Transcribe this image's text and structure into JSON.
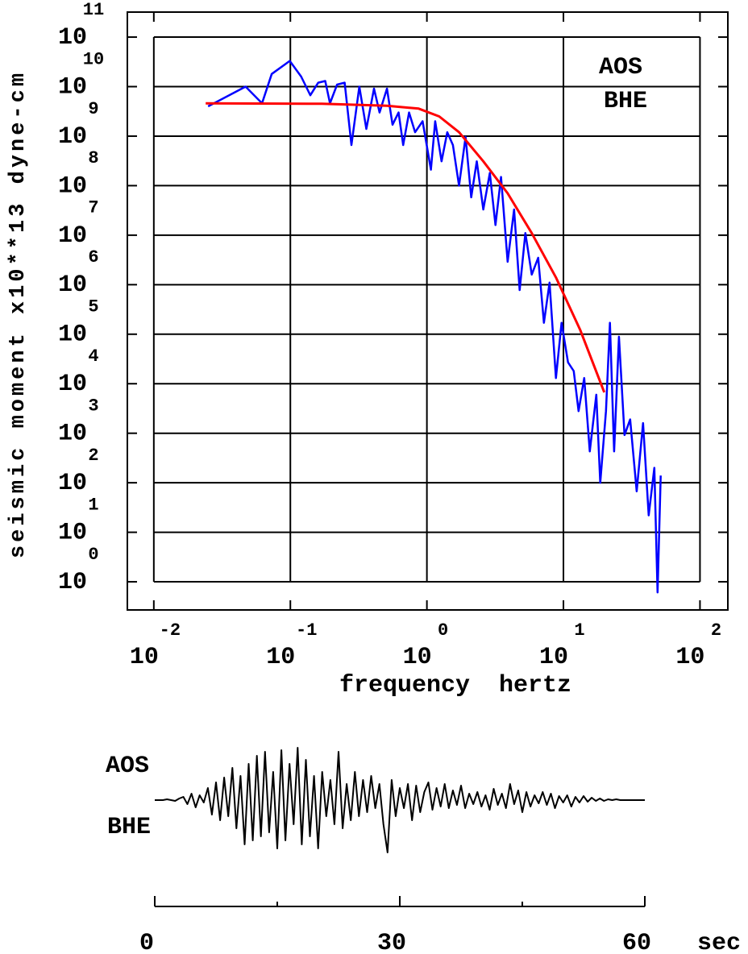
{
  "chart_data": [
    {
      "type": "line",
      "x_label": "frequency  hertz",
      "y_label": "seismic moment x10**13 dyne-cm",
      "station": "AOS",
      "channel": "BHE",
      "log_x": true,
      "log_y": true,
      "grid": true,
      "xlim": [
        0.0064,
        160
      ],
      "ylim": [
        0.27,
        320000000000.0
      ],
      "xticks": [
        {
          "value": 0.01,
          "label": "10",
          "power": "-2"
        },
        {
          "value": 0.1,
          "label": "10",
          "power": "-1"
        },
        {
          "value": 1,
          "label": "10",
          "power": "0"
        },
        {
          "value": 10,
          "label": "10",
          "power": "1"
        },
        {
          "value": 100,
          "label": "10",
          "power": "2"
        }
      ],
      "yticks": [
        {
          "value": 1,
          "label": "10",
          "power": "0"
        },
        {
          "value": 10,
          "label": "10",
          "power": "1"
        },
        {
          "value": 100,
          "label": "10",
          "power": "2"
        },
        {
          "value": 1000,
          "label": "10",
          "power": "3"
        },
        {
          "value": 10000,
          "label": "10",
          "power": "4"
        },
        {
          "value": 100000,
          "label": "10",
          "power": "5"
        },
        {
          "value": 1000000,
          "label": "10",
          "power": "6"
        },
        {
          "value": 10000000,
          "label": "10",
          "power": "7"
        },
        {
          "value": 100000000,
          "label": "10",
          "power": "8"
        },
        {
          "value": 1000000000,
          "label": "10",
          "power": "9"
        },
        {
          "value": 10000000000,
          "label": "10",
          "power": "10"
        },
        {
          "value": 100000000000,
          "label": "10",
          "power": "11"
        }
      ],
      "series": [
        {
          "color": "#0000ff",
          "x": [
            0.025,
            0.047,
            0.062,
            0.073,
            0.099,
            0.12,
            0.14,
            0.16,
            0.18,
            0.195,
            0.22,
            0.25,
            0.28,
            0.32,
            0.36,
            0.41,
            0.45,
            0.51,
            0.56,
            0.62,
            0.67,
            0.74,
            0.82,
            0.93,
            1.07,
            1.15,
            1.28,
            1.41,
            1.55,
            1.72,
            1.92,
            2.11,
            2.32,
            2.59,
            2.89,
            3.18,
            3.49,
            3.9,
            4.35,
            4.78,
            5.26,
            5.86,
            6.53,
            7.19,
            7.91,
            8.81,
            9.69,
            10.8,
            11.9,
            12.9,
            14.2,
            15.6,
            17.4,
            18.6,
            20.5,
            21.9,
            23.5,
            25.5,
            28,
            30.8,
            34.4,
            38.3,
            42.1,
            46.3,
            48.9,
            51.6
          ],
          "values": [
            4000000000.0,
            10000000000.0,
            4600000000.0,
            18000000000.0,
            33000000000.0,
            16000000000.0,
            6700000000.0,
            12000000000.0,
            13000000000.0,
            4600000000.0,
            11000000000.0,
            12000000000.0,
            660000000.0,
            10000000000.0,
            1400000000.0,
            9100000000.0,
            3000000000.0,
            9100000000.0,
            1700000000.0,
            3000000000.0,
            660000000.0,
            3000000000.0,
            1200000000.0,
            2000000000.0,
            210000000.0,
            2000000000.0,
            310000000.0,
            1200000000.0,
            660000000.0,
            100000000.0,
            960000000.0,
            58000000.0,
            310000000.0,
            33000000.0,
            180000000.0,
            16000000.0,
            150000000.0,
            2900000.0,
            33000000.0,
            780000.0,
            11000000.0,
            1600000.0,
            3500000.0,
            170000.0,
            1100000.0,
            13000.0,
            170000.0,
            27000.0,
            18000.0,
            2800.0,
            13000.0,
            430,
            6000.0,
            100,
            2800.0,
            170000.0,
            430,
            89000.0,
            920,
            1900.0,
            67,
            1600.0,
            22,
            200,
            0.61,
            140
          ]
        },
        {
          "color": "#ff0000",
          "x": [
            0.024,
            0.17,
            0.51,
            0.87,
            1.23,
            1.72,
            2.59,
            3.9,
            5.86,
            8.81,
            13.3,
            19.9
          ],
          "values": [
            4600000000.0,
            4500000000.0,
            4100000000.0,
            3600000000.0,
            2500000000.0,
            1200000000.0,
            310000000.0,
            70000000.0,
            11000000.0,
            1400000.0,
            120000.0,
            6700.0
          ]
        }
      ]
    },
    {
      "type": "line",
      "x_label": "sec",
      "station": "AOS",
      "channel": "BHE",
      "xlim": [
        0,
        60
      ],
      "ylim": [
        -70,
        70
      ],
      "xticks": [
        0,
        30,
        60
      ],
      "minor_xticks": [
        15,
        45
      ],
      "series": [
        {
          "color": "#000000",
          "x": [
            0,
            0.5,
            1,
            1.5,
            2,
            2.5,
            3,
            3.5,
            4,
            4.5,
            5,
            5.5,
            6,
            6.5,
            7,
            7.5,
            8,
            8.5,
            9,
            9.5,
            10,
            10.5,
            11,
            11.5,
            12,
            12.5,
            13,
            13.5,
            14,
            14.5,
            15,
            15.5,
            16,
            16.5,
            17,
            17.5,
            18,
            18.5,
            19,
            19.5,
            20,
            20.5,
            21,
            21.5,
            22,
            22.5,
            23,
            23.5,
            24,
            24.5,
            25,
            25.5,
            26,
            26.5,
            27,
            27.5,
            28,
            28.5,
            29,
            29.5,
            30,
            30.5,
            31,
            31.5,
            32,
            32.5,
            33,
            33.5,
            34,
            34.5,
            35,
            35.5,
            36,
            36.5,
            37,
            37.5,
            38,
            38.5,
            39,
            39.5,
            40,
            40.5,
            41,
            41.5,
            42,
            42.5,
            43,
            43.5,
            44,
            44.5,
            45,
            45.5,
            46,
            46.5,
            47,
            47.5,
            48,
            48.5,
            49,
            49.5,
            50,
            50.5,
            51,
            51.5,
            52,
            52.5,
            53,
            53.5,
            54,
            54.5,
            55,
            55.5,
            56,
            56.5,
            57,
            57.5,
            58,
            58.5,
            59,
            59.5,
            60
          ],
          "values": [
            0,
            0,
            0,
            1,
            0,
            -1,
            2,
            4,
            -5,
            8,
            -9,
            6,
            -3,
            15,
            -18,
            22,
            -25,
            28,
            -20,
            40,
            -35,
            30,
            -55,
            45,
            -50,
            55,
            -45,
            60,
            -40,
            35,
            -60,
            62,
            -50,
            45,
            -30,
            65,
            -55,
            50,
            -45,
            30,
            -60,
            35,
            -20,
            25,
            -30,
            60,
            -35,
            20,
            -25,
            35,
            -20,
            25,
            -15,
            30,
            -10,
            20,
            -30,
            -65,
            25,
            -20,
            15,
            -10,
            20,
            -25,
            18,
            -15,
            10,
            22,
            -12,
            15,
            -8,
            20,
            -10,
            12,
            -6,
            18,
            -10,
            8,
            -5,
            10,
            -8,
            6,
            -12,
            14,
            -6,
            8,
            -10,
            20,
            -5,
            12,
            -15,
            10,
            -8,
            6,
            -4,
            10,
            -6,
            8,
            -10,
            5,
            -3,
            6,
            -8,
            4,
            -3,
            5,
            -2,
            3,
            -1,
            2,
            -1,
            1,
            0,
            1,
            0,
            0,
            0,
            0,
            0,
            0,
            0
          ]
        }
      ]
    }
  ]
}
